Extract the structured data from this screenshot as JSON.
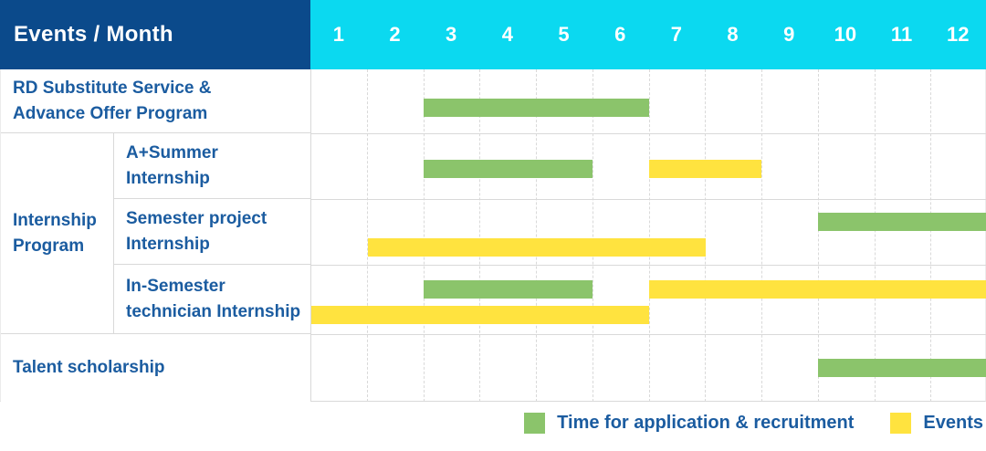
{
  "header": {
    "label": "Events / Month",
    "months": [
      "1",
      "2",
      "3",
      "4",
      "5",
      "6",
      "7",
      "8",
      "9",
      "10",
      "11",
      "12"
    ]
  },
  "colors": {
    "header_left_bg": "#0b4a8b",
    "header_months_bg": "#0bd9f0",
    "header_text": "#ffffff",
    "label_text": "#1b5ca0",
    "grid_line": "#d9d9d9",
    "green": "#8bc46b",
    "yellow": "#ffe33f"
  },
  "chart_data": {
    "type": "gantt",
    "x_unit": "month",
    "x_range": [
      1,
      12
    ],
    "legend_position": "bottom-right",
    "legend": [
      {
        "key": "green",
        "label": "Time for application & recruitment",
        "color": "#8bc46b"
      },
      {
        "key": "yellow",
        "label": "Events",
        "color": "#ffe33f"
      }
    ],
    "rows": [
      {
        "group": "",
        "label": "RD Substitute Service & Advance Offer Program",
        "lines": [
          "RD Substitute Service &",
          "Advance Offer Program"
        ],
        "bars": [
          {
            "type": "green",
            "start_month": 3,
            "end_month": 6
          }
        ]
      },
      {
        "group": "Internship Program",
        "label": "A+Summer Internship",
        "lines": [
          "A+Summer",
          "Internship"
        ],
        "bars": [
          {
            "type": "green",
            "start_month": 3,
            "end_month": 5
          },
          {
            "type": "yellow",
            "start_month": 7,
            "end_month": 8
          }
        ]
      },
      {
        "group": "Internship Program",
        "label": "Semester project Internship",
        "lines": [
          "Semester project",
          "Internship"
        ],
        "bars": [
          {
            "type": "green",
            "start_month": 10,
            "end_month": 12
          },
          {
            "type": "yellow",
            "start_month": 2,
            "end_month": 7
          }
        ]
      },
      {
        "group": "Internship Program",
        "label": "In-Semester technician Internship",
        "lines": [
          "In-Semester",
          "technician Internship"
        ],
        "bars": [
          {
            "type": "green",
            "start_month": 3,
            "end_month": 5
          },
          {
            "type": "yellow",
            "start_month": 7,
            "end_month": 12
          },
          {
            "type": "yellow",
            "start_month": 1,
            "end_month": 6
          }
        ]
      },
      {
        "group": "",
        "label": "Talent scholarship",
        "lines": [
          "Talent scholarship"
        ],
        "bars": [
          {
            "type": "green",
            "start_month": 10,
            "end_month": 12
          }
        ]
      }
    ],
    "group_label_lines": [
      "Internship",
      "Program"
    ]
  }
}
